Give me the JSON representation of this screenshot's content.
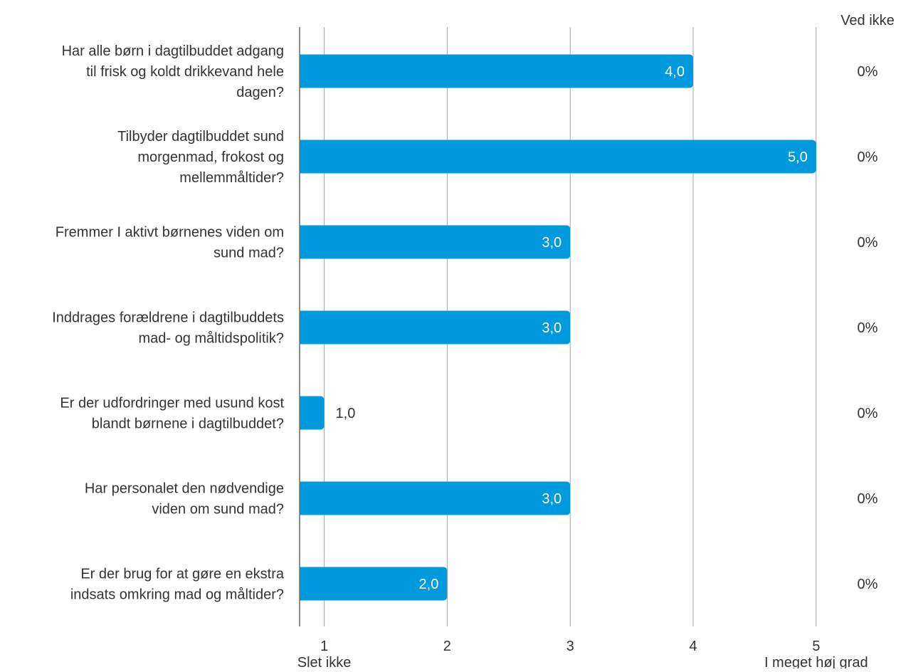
{
  "chart_data": {
    "type": "bar",
    "orientation": "horizontal",
    "categories": [
      [
        "Har alle børn i dagtilbuddet adgang",
        "til frisk og koldt drikkevand hele",
        "dagen?"
      ],
      [
        "Tilbyder dagtilbuddet sund",
        "morgenmad, frokost og",
        "mellemmåltider?"
      ],
      [
        "Fremmer I aktivt børnenes viden om",
        "sund mad?"
      ],
      [
        "Inddrages forældrene i dagtilbuddets",
        "mad- og måltidspolitik?"
      ],
      [
        "Er der udfordringer med usund kost",
        "blandt børnene i dagtilbuddet?"
      ],
      [
        "Har personalet den nødvendige",
        "viden om sund mad?"
      ],
      [
        "Er der brug for at gøre en ekstra",
        "indsats omkring mad og måltider?"
      ]
    ],
    "values": [
      4.0,
      5.0,
      3.0,
      3.0,
      1.0,
      3.0,
      2.0
    ],
    "value_labels": [
      "4,0",
      "5,0",
      "3,0",
      "3,0",
      "1,0",
      "3,0",
      "2,0"
    ],
    "ved_ikke": [
      "0%",
      "0%",
      "0%",
      "0%",
      "0%",
      "0%",
      "0%"
    ],
    "ved_ikke_header": "Ved ikke",
    "xlim": [
      0.8,
      5
    ],
    "ticks": [
      1,
      2,
      3,
      4,
      5
    ],
    "tick_labels": [
      "1",
      "2",
      "3",
      "4",
      "5"
    ],
    "scale_low_label": "Slet ikke",
    "scale_high_label": "I meget høj grad",
    "grid": true,
    "bar_color": "#0099dd",
    "title": "",
    "xlabel": "",
    "ylabel": ""
  }
}
